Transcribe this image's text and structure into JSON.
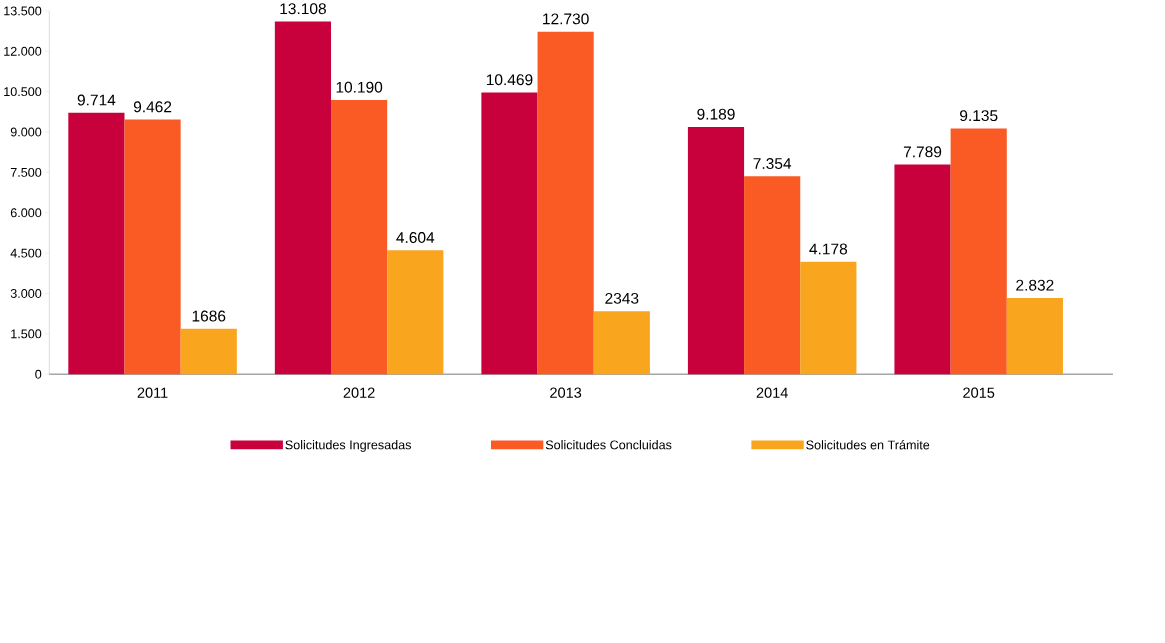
{
  "chart_data": {
    "type": "bar",
    "categories": [
      "2011",
      "2012",
      "2013",
      "2014",
      "2015"
    ],
    "series": [
      {
        "name": "Solicitudes Ingresadas",
        "color": "#c8003c",
        "values": [
          9714,
          13108,
          10469,
          9189,
          7789
        ],
        "value_labels": [
          "9.714",
          "13.108",
          "10.469",
          "9.189",
          "7.789"
        ]
      },
      {
        "name": "Solicitudes Concluidas",
        "color": "#fa5a23",
        "values": [
          9462,
          10190,
          12730,
          7354,
          9135
        ],
        "value_labels": [
          "9.462",
          "10.190",
          "12.730",
          "7.354",
          "9.135"
        ]
      },
      {
        "name": "Solicitudes en Trámite",
        "color": "#faa51e",
        "values": [
          1686,
          4604,
          2343,
          4178,
          2832
        ],
        "value_labels": [
          "1686",
          "4.604",
          "2343",
          "4.178",
          "2.832"
        ]
      }
    ],
    "ylim": [
      0,
      13500
    ],
    "yticks": [
      {
        "value": 0,
        "label": "0"
      },
      {
        "value": 1500,
        "label": "1.500"
      },
      {
        "value": 3000,
        "label": "3.000"
      },
      {
        "value": 4500,
        "label": "4.500"
      },
      {
        "value": 6000,
        "label": "6.000"
      },
      {
        "value": 7500,
        "label": "7.500"
      },
      {
        "value": 9000,
        "label": "9.000"
      },
      {
        "value": 10500,
        "label": "10.500"
      },
      {
        "value": 12000,
        "label": "12.000"
      },
      {
        "value": 13500,
        "label": "13.500"
      }
    ],
    "grid": false,
    "legend": "bottom"
  }
}
